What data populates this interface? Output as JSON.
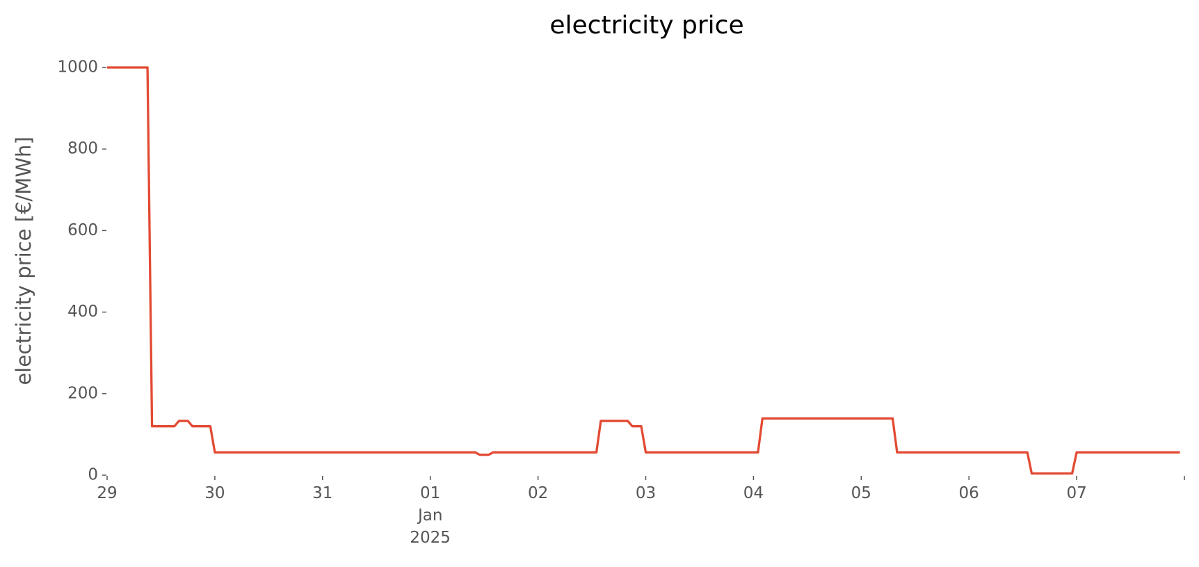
{
  "chart_data": {
    "type": "line",
    "title": "electricity price",
    "ylabel": "electricity price [€/MWh]",
    "x": [
      0,
      0.375,
      0.417,
      0.625,
      0.667,
      0.75,
      0.792,
      0.958,
      1.0,
      3.417,
      3.458,
      3.542,
      3.583,
      4.542,
      4.583,
      4.833,
      4.875,
      4.958,
      5.0,
      6.042,
      6.083,
      7.292,
      7.333,
      8.542,
      8.583,
      8.958,
      9.0,
      9.958
    ],
    "series": [
      {
        "name": "electricity price",
        "color": "#E24A33",
        "values": [
          1000,
          1000,
          120,
          120,
          133,
          133,
          120,
          120,
          56,
          56,
          50,
          50,
          56,
          56,
          133,
          133,
          120,
          120,
          56,
          56,
          139,
          139,
          56,
          56,
          4,
          4,
          56,
          56
        ]
      }
    ],
    "xlim": [
      0,
      10
    ],
    "xticks": [
      {
        "value": 0,
        "label": "29"
      },
      {
        "value": 1,
        "label": "30"
      },
      {
        "value": 2,
        "label": "31"
      },
      {
        "value": 3,
        "label": "01\nJan\n2025"
      },
      {
        "value": 4,
        "label": "02"
      },
      {
        "value": 5,
        "label": "03"
      },
      {
        "value": 6,
        "label": "04"
      },
      {
        "value": 7,
        "label": "05"
      },
      {
        "value": 8,
        "label": "06"
      },
      {
        "value": 9,
        "label": "07"
      },
      {
        "value": 10,
        "label": null
      }
    ],
    "ylim": [
      0,
      1000
    ],
    "yticks": [
      0,
      200,
      400,
      600,
      800,
      1000
    ],
    "grid": false
  }
}
